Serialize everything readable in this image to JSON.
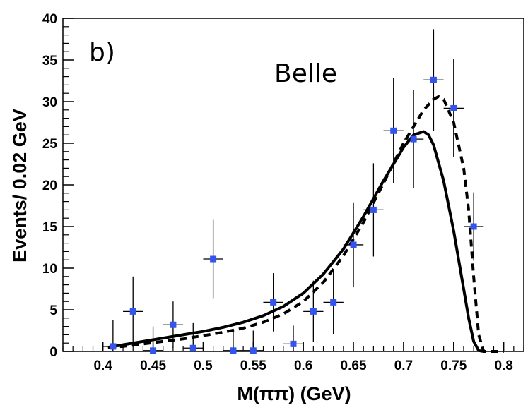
{
  "chart_data": {
    "type": "scatter",
    "panel_label": "b)",
    "annotation": "Belle",
    "xlabel": "M(ππ) (GeV)",
    "ylabel": "Events/ 0.02 GeV",
    "xlim": [
      0.36,
      0.82
    ],
    "ylim": [
      0,
      40
    ],
    "x_ticks": [
      "0.4",
      "0.45",
      "0.5",
      "0.55",
      "0.6",
      "0.65",
      "0.7",
      "0.75",
      "0.8"
    ],
    "y_ticks": [
      "0",
      "5",
      "10",
      "15",
      "20",
      "25",
      "30",
      "35",
      "40"
    ],
    "marker_color": "#3355ee",
    "series": [
      {
        "name": "data",
        "style": "points",
        "x": [
          0.41,
          0.43,
          0.45,
          0.47,
          0.49,
          0.51,
          0.53,
          0.55,
          0.57,
          0.59,
          0.61,
          0.63,
          0.65,
          0.67,
          0.69,
          0.71,
          0.73,
          0.75,
          0.77
        ],
        "y": [
          0.6,
          4.8,
          0.1,
          3.2,
          0.4,
          11.1,
          0.1,
          0.1,
          5.9,
          0.9,
          4.8,
          5.9,
          12.8,
          17.0,
          26.5,
          25.5,
          32.6,
          29.2,
          15.0
        ],
        "yerr": [
          3.2,
          4.2,
          2.9,
          2.8,
          3.0,
          4.7,
          2.4,
          2.4,
          3.5,
          2.2,
          3.7,
          3.8,
          5.1,
          5.6,
          6.3,
          5.9,
          6.1,
          5.9,
          4.1
        ],
        "xerr": 0.01
      },
      {
        "name": "fit-solid",
        "style": "solid",
        "x": [
          0.405,
          0.42,
          0.44,
          0.46,
          0.48,
          0.5,
          0.52,
          0.54,
          0.56,
          0.58,
          0.6,
          0.62,
          0.64,
          0.66,
          0.68,
          0.7,
          0.71,
          0.72,
          0.725,
          0.73,
          0.74,
          0.75,
          0.76,
          0.765,
          0.77,
          0.775,
          0.78
        ],
        "y": [
          0.5,
          0.8,
          1.2,
          1.6,
          2.0,
          2.4,
          2.9,
          3.5,
          4.3,
          5.4,
          7.0,
          9.3,
          12.3,
          16.2,
          20.5,
          24.5,
          26.0,
          26.4,
          26.0,
          24.8,
          20.5,
          14.5,
          7.5,
          4.0,
          1.2,
          0.1,
          0.0
        ]
      },
      {
        "name": "fit-dashed",
        "style": "dashed",
        "x": [
          0.405,
          0.42,
          0.44,
          0.46,
          0.48,
          0.5,
          0.52,
          0.54,
          0.56,
          0.58,
          0.6,
          0.62,
          0.64,
          0.66,
          0.68,
          0.7,
          0.72,
          0.73,
          0.735,
          0.74,
          0.75,
          0.76,
          0.765,
          0.77,
          0.775,
          0.78,
          0.8
        ],
        "y": [
          0.5,
          0.6,
          0.9,
          1.2,
          1.5,
          1.9,
          2.3,
          2.8,
          3.5,
          4.5,
          6.0,
          8.3,
          11.5,
          15.5,
          20.2,
          25.0,
          29.0,
          30.3,
          30.6,
          30.3,
          27.5,
          22.0,
          17.0,
          9.0,
          2.0,
          0.0,
          0.0
        ]
      }
    ]
  }
}
